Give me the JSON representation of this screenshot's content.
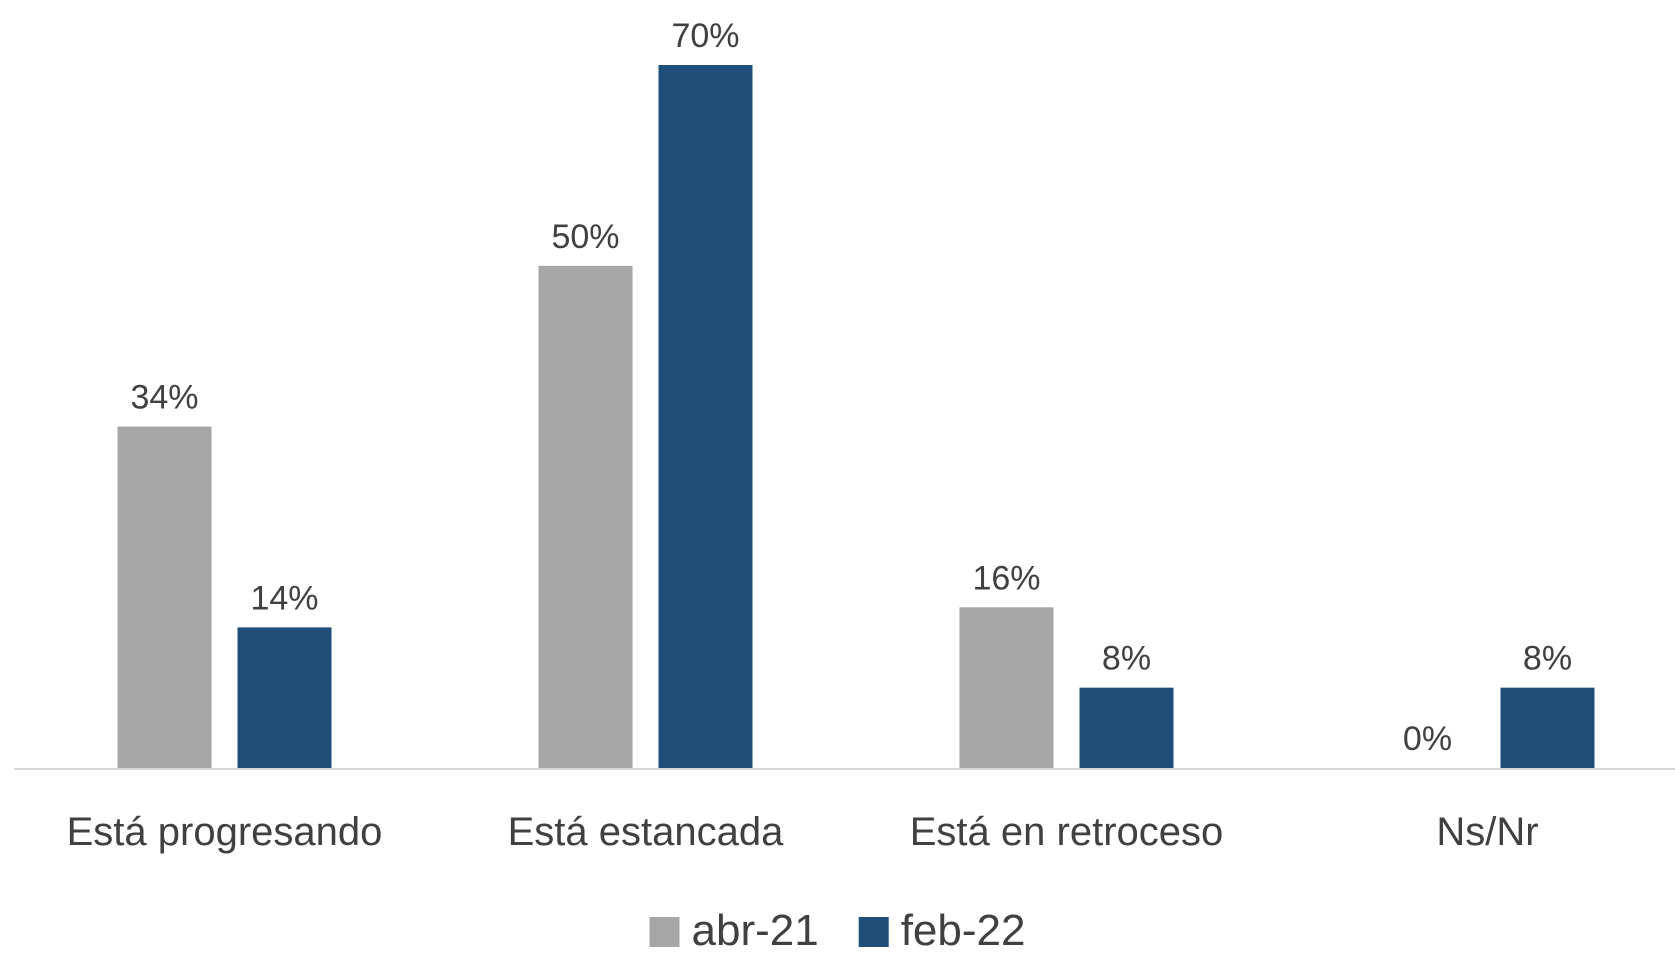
{
  "chart_data": {
    "type": "bar",
    "categories": [
      "Está progresando",
      "Está estancada",
      "Está en retroceso",
      "Ns/Nr"
    ],
    "series": [
      {
        "name": "abr-21",
        "values": [
          34,
          50,
          16,
          0
        ],
        "color": "#A6A6A6"
      },
      {
        "name": "feb-22",
        "values": [
          14,
          70,
          8,
          8
        ],
        "color": "#1F4E79"
      }
    ],
    "value_suffix": "%",
    "ylim": [
      0,
      70
    ],
    "grid": false,
    "axis_color": "#D9D9D9",
    "legend": "bottom"
  }
}
